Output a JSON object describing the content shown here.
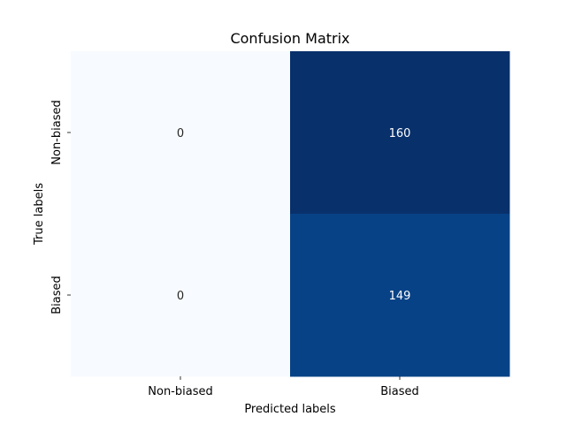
{
  "chart_data": {
    "type": "heatmap",
    "title": "Confusion Matrix",
    "xlabel": "Predicted labels",
    "ylabel": "True labels",
    "x_categories": [
      "Non-biased",
      "Biased"
    ],
    "y_categories": [
      "Non-biased",
      "Biased"
    ],
    "values": [
      [
        0,
        160
      ],
      [
        0,
        149
      ]
    ],
    "colormap": "Blues",
    "color_range": [
      0,
      160
    ],
    "colorbar": false,
    "grid": false
  }
}
